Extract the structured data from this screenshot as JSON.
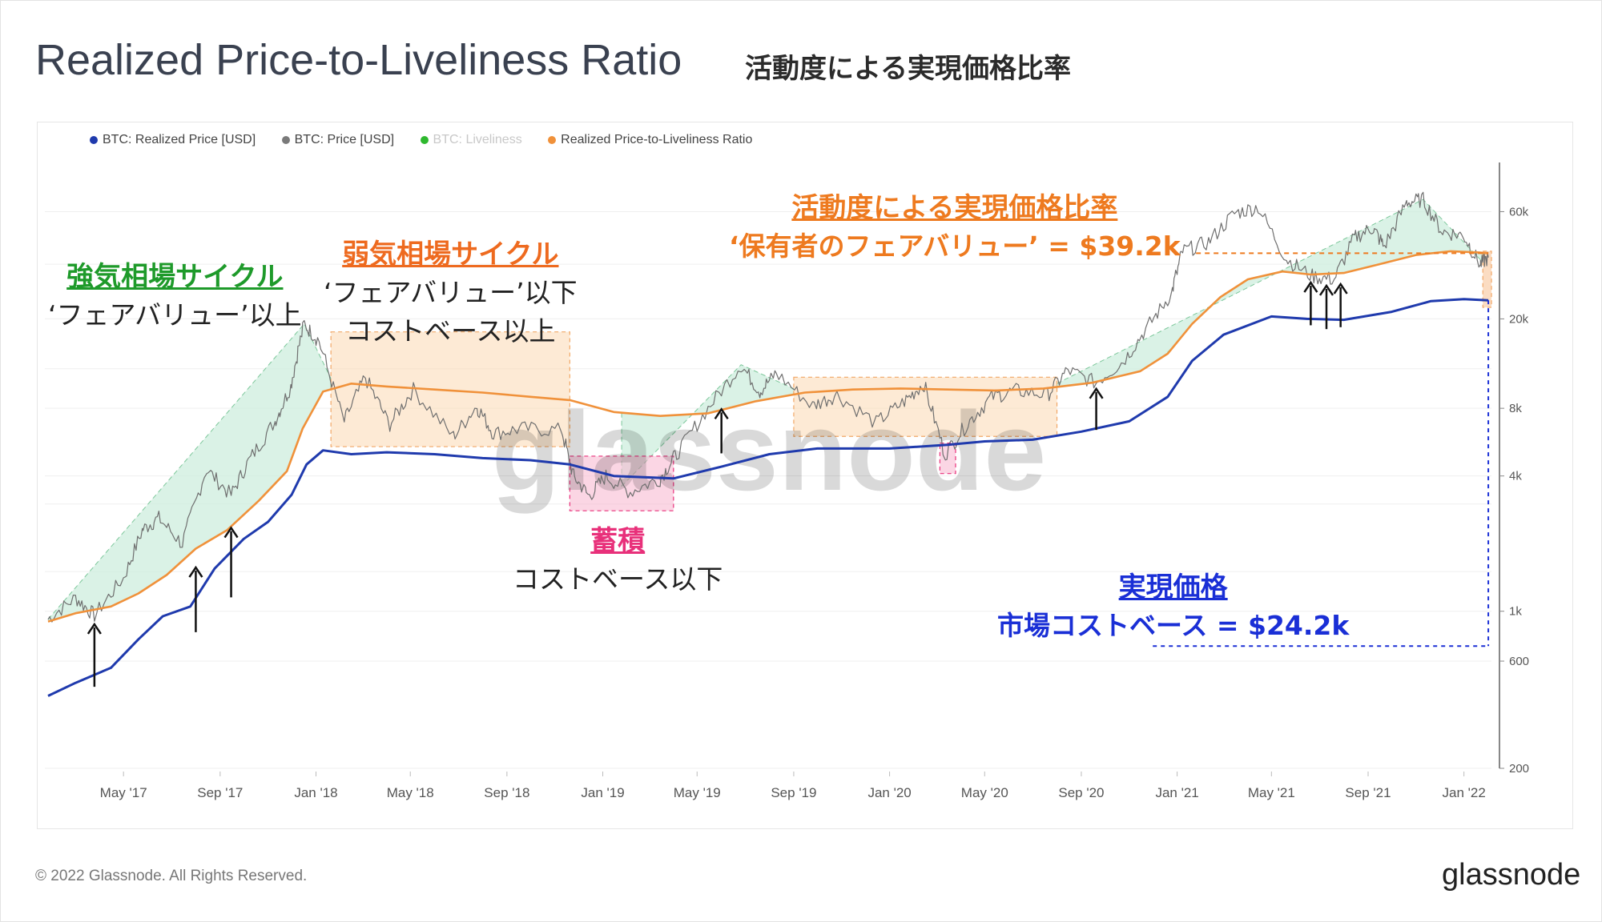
{
  "header": {
    "title": "Realized Price-to-Liveliness Ratio",
    "subtitle": "活動度による実現価格比率"
  },
  "legend": [
    {
      "label": "BTC: Realized Price [USD]",
      "color": "#1f3aad"
    },
    {
      "label": "BTC: Price [USD]",
      "color": "#7a7a7a"
    },
    {
      "label": "BTC: Liveliness",
      "color": "#2eb82e"
    },
    {
      "label": "Realized Price-to-Liveliness Ratio",
      "color": "#f0913a"
    }
  ],
  "annotations": {
    "bull": {
      "title": "強気相場サイクル",
      "line1": "‘フェアバリュー’以上",
      "color": "#1e9a2a"
    },
    "bear": {
      "title": "弱気相場サイクル",
      "line1": "‘フェアバリュー’以下",
      "line2": "コストベース以上",
      "color": "#ee6a1f"
    },
    "accum": {
      "title": "蓄積",
      "line1": "コストベース以下",
      "color": "#e8307a"
    },
    "fair": {
      "title": "活動度による実現価格比率",
      "line1": "‘保有者のフェアバリュー’ = $39.2k",
      "color": "#ee7a1f"
    },
    "realized": {
      "title": "実現価格",
      "line1": "市場コストベース = $24.2k",
      "color": "#1a2fd6"
    }
  },
  "watermark": "glassnode",
  "footer": {
    "copyright": "© 2022 Glassnode. All Rights Reserved.",
    "brand": "glassnode"
  },
  "chart_data": {
    "type": "line",
    "scale": "log",
    "ylim": [
      200,
      90000
    ],
    "xlim": [
      "2017-01-25",
      "2022-02-05"
    ],
    "x_ticks": [
      {
        "label": "May '17",
        "date": "2017-05-01"
      },
      {
        "label": "Sep '17",
        "date": "2017-09-01"
      },
      {
        "label": "Jan '18",
        "date": "2018-01-01"
      },
      {
        "label": "May '18",
        "date": "2018-05-01"
      },
      {
        "label": "Sep '18",
        "date": "2018-09-01"
      },
      {
        "label": "Jan '19",
        "date": "2019-01-01"
      },
      {
        "label": "May '19",
        "date": "2019-05-01"
      },
      {
        "label": "Sep '19",
        "date": "2019-09-01"
      },
      {
        "label": "Jan '20",
        "date": "2020-01-01"
      },
      {
        "label": "May '20",
        "date": "2020-05-01"
      },
      {
        "label": "Sep '20",
        "date": "2020-09-01"
      },
      {
        "label": "Jan '21",
        "date": "2021-01-01"
      },
      {
        "label": "May '21",
        "date": "2021-05-01"
      },
      {
        "label": "Sep '21",
        "date": "2021-09-01"
      },
      {
        "label": "Jan '22",
        "date": "2022-01-01"
      }
    ],
    "y_ticks": [
      {
        "label": "60k",
        "value": 60000
      },
      {
        "label": "20k",
        "value": 20000
      },
      {
        "label": "8k",
        "value": 8000
      },
      {
        "label": "4k",
        "value": 4000
      },
      {
        "label": "1k",
        "value": 1000
      },
      {
        "label": "600",
        "value": 600
      },
      {
        "label": "200",
        "value": 200
      }
    ],
    "series": [
      {
        "name": "BTC: Realized Price [USD]",
        "color": "#1f3aad",
        "points": [
          [
            "2017-01-25",
            420
          ],
          [
            "2017-03-01",
            480
          ],
          [
            "2017-04-15",
            560
          ],
          [
            "2017-05-20",
            750
          ],
          [
            "2017-06-20",
            950
          ],
          [
            "2017-07-25",
            1050
          ],
          [
            "2017-08-25",
            1550
          ],
          [
            "2017-10-01",
            2100
          ],
          [
            "2017-11-01",
            2500
          ],
          [
            "2017-12-01",
            3300
          ],
          [
            "2017-12-20",
            4500
          ],
          [
            "2018-01-10",
            5200
          ],
          [
            "2018-02-15",
            5000
          ],
          [
            "2018-04-01",
            5100
          ],
          [
            "2018-06-01",
            5000
          ],
          [
            "2018-08-01",
            4800
          ],
          [
            "2018-10-01",
            4700
          ],
          [
            "2018-11-20",
            4500
          ],
          [
            "2019-01-15",
            4000
          ],
          [
            "2019-04-01",
            3900
          ],
          [
            "2019-06-01",
            4400
          ],
          [
            "2019-08-01",
            5000
          ],
          [
            "2019-10-01",
            5300
          ],
          [
            "2020-01-01",
            5300
          ],
          [
            "2020-03-15",
            5500
          ],
          [
            "2020-05-01",
            5700
          ],
          [
            "2020-07-01",
            5800
          ],
          [
            "2020-09-01",
            6300
          ],
          [
            "2020-11-01",
            7000
          ],
          [
            "2020-12-20",
            9000
          ],
          [
            "2021-01-20",
            13000
          ],
          [
            "2021-03-01",
            17000
          ],
          [
            "2021-05-01",
            20500
          ],
          [
            "2021-06-15",
            20000
          ],
          [
            "2021-08-01",
            19800
          ],
          [
            "2021-10-01",
            21500
          ],
          [
            "2021-11-20",
            24000
          ],
          [
            "2022-01-01",
            24500
          ],
          [
            "2022-02-01",
            24200
          ]
        ]
      },
      {
        "name": "BTC: Price [USD]",
        "color": "#7a7a7a",
        "points": [
          [
            "2017-01-25",
            920
          ],
          [
            "2017-03-01",
            1150
          ],
          [
            "2017-03-25",
            960
          ],
          [
            "2017-05-01",
            1400
          ],
          [
            "2017-05-25",
            2300
          ],
          [
            "2017-06-15",
            2600
          ],
          [
            "2017-07-15",
            2000
          ],
          [
            "2017-08-15",
            4300
          ],
          [
            "2017-09-15",
            3300
          ],
          [
            "2017-10-10",
            4800
          ],
          [
            "2017-11-10",
            7000
          ],
          [
            "2017-11-30",
            10000
          ],
          [
            "2017-12-17",
            19000
          ],
          [
            "2018-01-05",
            16000
          ],
          [
            "2018-02-06",
            7000
          ],
          [
            "2018-03-05",
            11000
          ],
          [
            "2018-04-05",
            6800
          ],
          [
            "2018-05-05",
            9700
          ],
          [
            "2018-06-25",
            6000
          ],
          [
            "2018-07-25",
            8200
          ],
          [
            "2018-08-15",
            6200
          ],
          [
            "2018-09-20",
            6500
          ],
          [
            "2018-11-10",
            6400
          ],
          [
            "2018-11-25",
            4000
          ],
          [
            "2018-12-15",
            3250
          ],
          [
            "2019-01-05",
            4000
          ],
          [
            "2019-02-05",
            3400
          ],
          [
            "2019-03-15",
            3900
          ],
          [
            "2019-04-05",
            5000
          ],
          [
            "2019-05-15",
            8000
          ],
          [
            "2019-06-26",
            12500
          ],
          [
            "2019-07-20",
            9500
          ],
          [
            "2019-08-10",
            11500
          ],
          [
            "2019-09-25",
            8200
          ],
          [
            "2019-10-26",
            9200
          ],
          [
            "2019-12-15",
            6900
          ],
          [
            "2020-01-20",
            8600
          ],
          [
            "2020-02-14",
            10300
          ],
          [
            "2020-03-12",
            5000
          ],
          [
            "2020-04-10",
            6900
          ],
          [
            "2020-05-10",
            9000
          ],
          [
            "2020-06-10",
            9600
          ],
          [
            "2020-07-20",
            9200
          ],
          [
            "2020-08-15",
            11800
          ],
          [
            "2020-09-20",
            10400
          ],
          [
            "2020-10-25",
            13000
          ],
          [
            "2020-11-25",
            18500
          ],
          [
            "2020-12-25",
            26000
          ],
          [
            "2021-01-08",
            40000
          ],
          [
            "2021-02-10",
            44000
          ],
          [
            "2021-03-15",
            59000
          ],
          [
            "2021-04-14",
            63000
          ],
          [
            "2021-05-20",
            37000
          ],
          [
            "2021-06-22",
            31000
          ],
          [
            "2021-07-20",
            30000
          ],
          [
            "2021-08-15",
            46000
          ],
          [
            "2021-09-07",
            51000
          ],
          [
            "2021-09-22",
            42000
          ],
          [
            "2021-10-20",
            66000
          ],
          [
            "2021-11-10",
            68000
          ],
          [
            "2021-12-05",
            49000
          ],
          [
            "2022-01-01",
            47000
          ],
          [
            "2022-01-22",
            35000
          ],
          [
            "2022-02-01",
            37500
          ]
        ]
      },
      {
        "name": "Realized Price-to-Liveliness Ratio",
        "color": "#f0913a",
        "points": [
          [
            "2017-01-25",
            900
          ],
          [
            "2017-03-01",
            980
          ],
          [
            "2017-04-15",
            1050
          ],
          [
            "2017-05-20",
            1200
          ],
          [
            "2017-06-25",
            1450
          ],
          [
            "2017-08-01",
            1900
          ],
          [
            "2017-09-10",
            2300
          ],
          [
            "2017-10-20",
            3100
          ],
          [
            "2017-11-25",
            4200
          ],
          [
            "2017-12-15",
            6500
          ],
          [
            "2018-01-10",
            9500
          ],
          [
            "2018-02-15",
            10300
          ],
          [
            "2018-04-01",
            10000
          ],
          [
            "2018-06-01",
            9700
          ],
          [
            "2018-08-01",
            9400
          ],
          [
            "2018-10-01",
            9000
          ],
          [
            "2018-11-20",
            8700
          ],
          [
            "2019-01-15",
            7700
          ],
          [
            "2019-03-15",
            7400
          ],
          [
            "2019-05-15",
            7600
          ],
          [
            "2019-07-15",
            8600
          ],
          [
            "2019-09-15",
            9400
          ],
          [
            "2019-11-15",
            9700
          ],
          [
            "2020-01-15",
            9800
          ],
          [
            "2020-03-15",
            9700
          ],
          [
            "2020-05-15",
            9600
          ],
          [
            "2020-07-15",
            9800
          ],
          [
            "2020-09-15",
            10400
          ],
          [
            "2020-11-15",
            11700
          ],
          [
            "2020-12-20",
            14000
          ],
          [
            "2021-01-20",
            19000
          ],
          [
            "2021-02-25",
            25000
          ],
          [
            "2021-04-01",
            30000
          ],
          [
            "2021-05-15",
            32500
          ],
          [
            "2021-06-20",
            31500
          ],
          [
            "2021-08-01",
            32000
          ],
          [
            "2021-09-15",
            35000
          ],
          [
            "2021-11-01",
            38500
          ],
          [
            "2021-12-15",
            40000
          ],
          [
            "2022-01-20",
            39500
          ],
          [
            "2022-02-01",
            39200
          ]
        ]
      }
    ]
  }
}
